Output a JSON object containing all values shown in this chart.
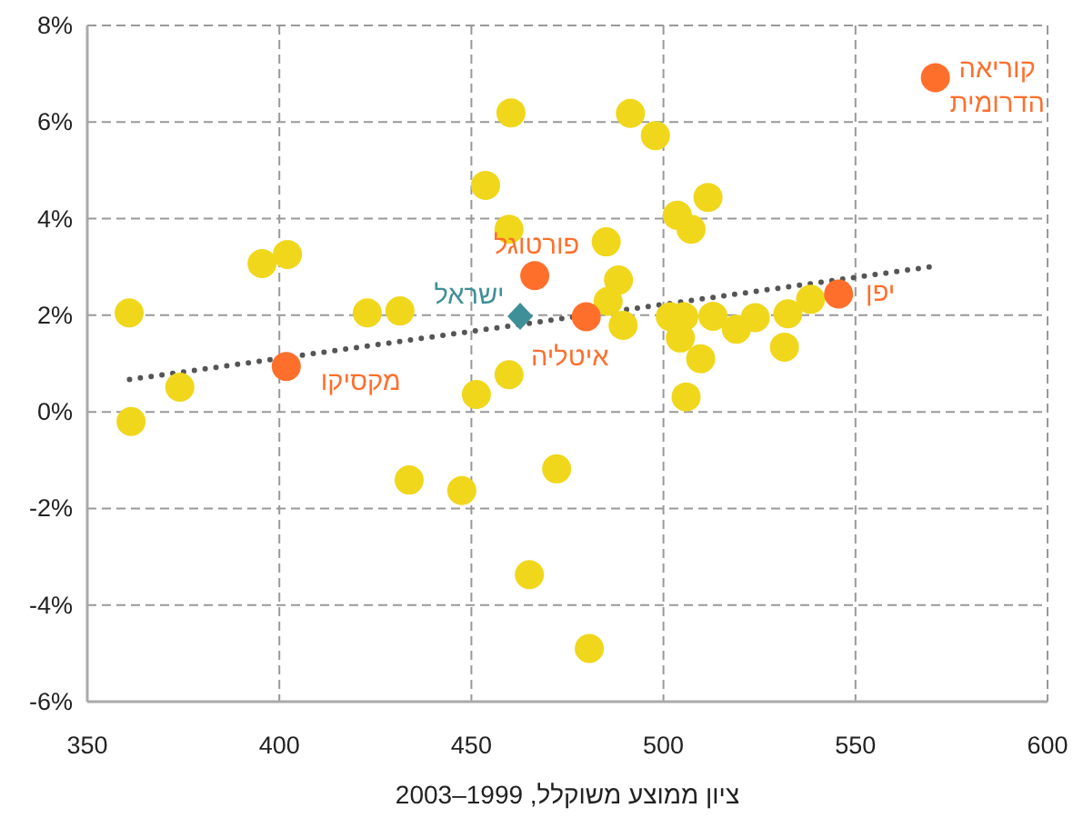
{
  "chart_data": {
    "type": "scatter",
    "xlabel": "ציון ממוצע משוקלל, 1999–2003",
    "xlim": [
      350,
      600
    ],
    "xticks": [
      350,
      400,
      450,
      500,
      550,
      600
    ],
    "ylim": [
      -6,
      8
    ],
    "yticks": [
      {
        "value": -6,
        "label": "-6%"
      },
      {
        "value": -4,
        "label": "-4%"
      },
      {
        "value": -2,
        "label": "-2%"
      },
      {
        "value": 0,
        "label": "0%"
      },
      {
        "value": 2,
        "label": "2%"
      },
      {
        "value": 4,
        "label": "4%"
      },
      {
        "value": 6,
        "label": "6%"
      },
      {
        "value": 8,
        "label": "8%"
      }
    ],
    "grid": true,
    "marker": "circle",
    "series": [
      {
        "type": "line",
        "line_style": "dotted",
        "marker": "none",
        "color": "#555555",
        "x": [
          361,
          571
        ],
        "values": [
          0.67,
          3.02
        ]
      },
      {
        "color": "#f0d71c",
        "x": [
          360.9,
          361.4,
          374.1,
          395.5,
          402.1,
          422.9,
          431.4,
          433.8,
          447.5,
          451.3,
          453.7,
          459.8,
          459.8,
          460.3,
          465.1,
          472.2,
          480.7,
          485.1,
          488.3,
          485.6,
          489.5,
          491.4,
          497.9,
          503.6,
          507.2,
          511.6,
          501.8,
          505.3,
          507.2,
          511.9,
          512.9,
          519.0,
          523.9,
          504.4,
          509.7,
          532.4,
          531.5,
          538.3,
          505.9
        ],
        "values": [
          2.05,
          -0.2,
          0.51,
          3.07,
          3.26,
          2.05,
          2.09,
          -1.41,
          -1.63,
          0.36,
          4.69,
          0.77,
          3.78,
          6.19,
          -3.37,
          -1.18,
          -4.9,
          3.52,
          2.73,
          2.29,
          1.79,
          6.18,
          5.72,
          4.07,
          3.78,
          4.44,
          1.97,
          1.97,
          null,
          null,
          1.98,
          1.71,
          1.95,
          1.53,
          1.1,
          2.03,
          1.34,
          2.33,
          0.31
        ]
      },
      {
        "color": "#ff6f2c",
        "x": [
          570.8,
          466.5,
          479.9,
          401.8,
          545.6
        ],
        "values": [
          6.92,
          2.82,
          1.97,
          0.94,
          2.44
        ]
      },
      {
        "color": "#3f8f99",
        "marker": "diamond",
        "x": [
          462.7
        ],
        "values": [
          1.98
        ]
      }
    ],
    "annotations": [
      {
        "text": "קוריאה הדרומית",
        "x": 570.8,
        "y": 6.92
      },
      {
        "text": "פורטוגל",
        "x": 466.5,
        "y": 2.82
      },
      {
        "text": "ישראל",
        "x": 462.7,
        "y": 1.98
      },
      {
        "text": "איטליה",
        "x": 479.9,
        "y": 1.97
      },
      {
        "text": "מקסיקו",
        "x": 401.8,
        "y": 0.94
      },
      {
        "text": "יפן",
        "x": 545.6,
        "y": 2.44
      }
    ]
  }
}
